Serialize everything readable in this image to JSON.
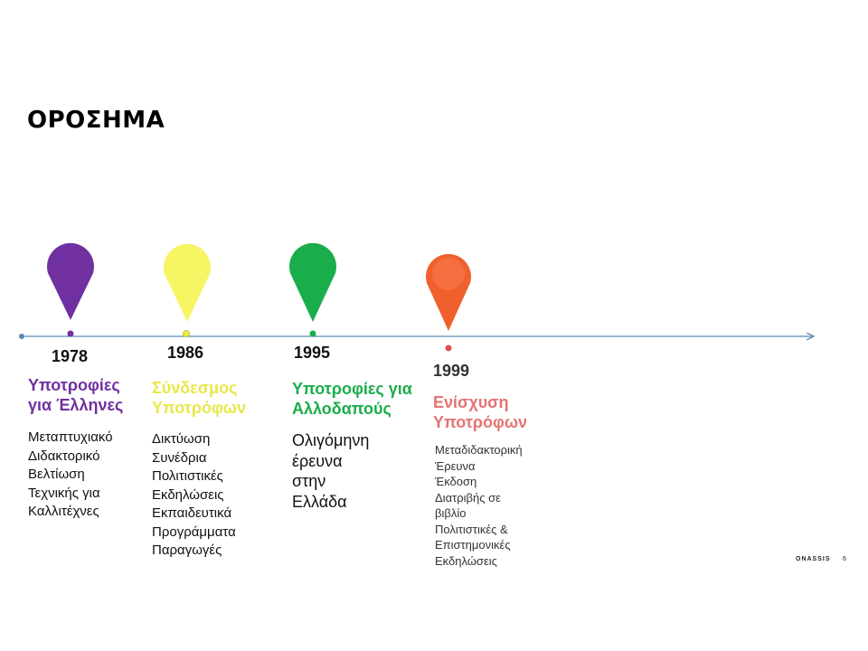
{
  "title": "ΟΡΟΣΗΜΑ",
  "milestones": [
    {
      "year": "1978",
      "heading": "Υποτροφίες\nγια Έλληνες",
      "items": "Μεταπτυχιακό\nΔιδακτορικό\nΒελτίωση\nΤεχνικής για\nΚαλλιτέχνες",
      "color": "#7030a0"
    },
    {
      "year": "1986",
      "heading": "Σύνδεσμος\nΥποτρόφων",
      "items": "Δικτύωση\nΣυνέδρια\nΠολιτιστικές\nΕκδηλώσεις\nΕκπαιδευτικά\nΠρογράμματα\nΠαραγωγές",
      "color": "#f0ee3c"
    },
    {
      "year": "1995",
      "heading": "Υποτροφίες για\nΑλλοδαπούς",
      "items": "Ολιγόμηνη\nέρευνα\nστην\nΕλλάδα",
      "color": "#1aad4b"
    },
    {
      "year": "1999",
      "heading": "Ενίσχυση\nΥποτρόφων",
      "items": "Μεταδιδακτορική\nΈρευνα\nΈκδοση\nΔιατριβής σε\nβιβλίο\nΠολιτιστικές &\nΕπιστημονικές\nΕκδηλώσεις",
      "color": "#f0602c",
      "heading_color": "#e57373"
    }
  ],
  "colors": {
    "timeline_line": "#5b8ab8"
  },
  "footer": {
    "brand": "ONASSIS",
    "page": "6"
  }
}
